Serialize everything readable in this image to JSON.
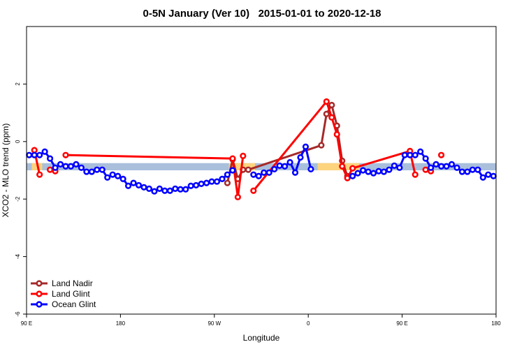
{
  "chart_data": {
    "type": "line",
    "title": "0-5N January (Ver 10)   2015-01-01 to 2020-12-18",
    "x_label": "Longitude",
    "y_label": "XCO2 - MLO trend (ppm)",
    "xlim": [
      90,
      540
    ],
    "ylim": [
      -6,
      4
    ],
    "xticks": [
      {
        "value": 90,
        "label": "90 E"
      },
      180,
      {
        "value": 270,
        "label": "90 W"
      },
      {
        "value": 360,
        "label": "0"
      },
      {
        "value": 450,
        "label": "90 E"
      },
      {
        "value": 540,
        "label": "180"
      }
    ],
    "yticks": [
      -6,
      -4,
      -2,
      0,
      2
    ],
    "grid": false,
    "legend": "bottom-left",
    "reference_band": {
      "ymin": -1.0,
      "ymax": -0.75,
      "color": "#a9bfdc",
      "land_color": "#fdd37e",
      "land_ranges": [
        [
          95,
          105
        ],
        [
          284,
          309
        ],
        [
          369,
          409
        ]
      ]
    },
    "series": [
      {
        "name": "Land Nadir",
        "color": "#a52a2a",
        "x": [
          282.5,
          287.5,
          292.5,
          297.5,
          302.5,
          372.5,
          377.5,
          382.5,
          387.5,
          392.5,
          397.5
        ],
        "values": [
          -1.44,
          -0.62,
          -1.3,
          -0.98,
          -0.98,
          -0.13,
          0.96,
          1.27,
          0.55,
          -0.67,
          -1.2
        ]
      },
      {
        "name": "Land Glint",
        "color": "#ff0000",
        "x": [
          97.5,
          102.5,
          107.5,
          112.5,
          117.5,
          122.5,
          127.5,
          287.5,
          292.5,
          297.5,
          302.5,
          307.5,
          377.5,
          382.5,
          387.5,
          392.5,
          397.5,
          402.5,
          457.5,
          462.5,
          467.5,
          472.5,
          477.5,
          482.5,
          487.5
        ],
        "values": [
          -0.3,
          -1.15,
          null,
          -0.98,
          -1.03,
          null,
          -0.47,
          -0.59,
          -1.93,
          -0.5,
          null,
          -1.71,
          1.39,
          0.84,
          0.25,
          -0.86,
          -1.27,
          -0.93,
          -0.33,
          -1.15,
          null,
          -0.98,
          -1.03,
          null,
          -0.47
        ]
      },
      {
        "name": "Ocean Glint",
        "color": "#0000ff",
        "x": [
          92.5,
          97.5,
          102.5,
          107.5,
          112.5,
          117.5,
          122.5,
          127.5,
          132.5,
          137.5,
          142.5,
          147.5,
          152.5,
          157.5,
          162.5,
          167.5,
          172.5,
          177.5,
          182.5,
          187.5,
          192.5,
          197.5,
          202.5,
          207.5,
          212.5,
          217.5,
          222.5,
          227.5,
          232.5,
          237.5,
          242.5,
          247.5,
          252.5,
          257.5,
          262.5,
          267.5,
          272.5,
          277.5,
          282.5,
          287.5,
          292.5,
          307.5,
          312.5,
          317.5,
          322.5,
          327.5,
          332.5,
          337.5,
          342.5,
          347.5,
          352.5,
          357.5,
          362.5,
          367.5,
          402.5,
          407.5,
          412.5,
          417.5,
          422.5,
          427.5,
          432.5,
          437.5,
          442.5,
          447.5,
          452.5,
          457.5,
          462.5,
          467.5,
          472.5,
          477.5,
          482.5,
          487.5,
          492.5,
          497.5,
          502.5,
          507.5,
          512.5,
          517.5,
          522.5,
          527.5,
          532.5,
          537.5
        ],
        "values": [
          -0.47,
          -0.47,
          -0.47,
          -0.35,
          -0.59,
          -0.91,
          -0.79,
          -0.86,
          -0.86,
          -0.79,
          -0.91,
          -1.05,
          -1.05,
          -0.98,
          -0.98,
          -1.25,
          -1.15,
          -1.2,
          -1.3,
          -1.54,
          -1.44,
          -1.52,
          -1.59,
          -1.64,
          -1.73,
          -1.64,
          -1.71,
          -1.71,
          -1.64,
          -1.66,
          -1.66,
          -1.54,
          -1.52,
          -1.47,
          -1.44,
          -1.39,
          -1.39,
          -1.3,
          -1.15,
          -1.0,
          null,
          -1.15,
          -1.2,
          -1.08,
          -1.08,
          -0.96,
          -0.84,
          -0.86,
          -0.72,
          -1.08,
          -0.55,
          -0.18,
          -0.96,
          null,
          -1.2,
          -1.1,
          -1.0,
          -1.05,
          -1.1,
          -1.03,
          -1.05,
          -0.98,
          -0.84,
          -0.91,
          -0.47,
          -0.47,
          -0.47,
          -0.35,
          -0.59,
          -0.91,
          -0.79,
          -0.86,
          -0.86,
          -0.79,
          -0.91,
          -1.05,
          -1.05,
          -0.98,
          -0.98,
          -1.25,
          -1.15,
          -1.2
        ]
      }
    ]
  }
}
